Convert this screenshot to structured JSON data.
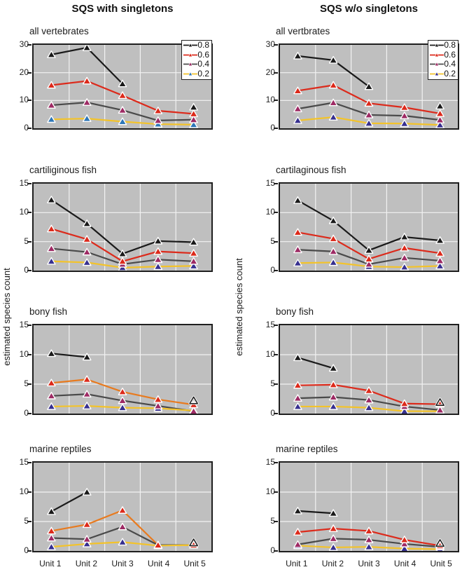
{
  "figure": {
    "column_titles": [
      "SQS with singletons",
      "SQS w/o singletons"
    ],
    "ylabel": "estimated species count",
    "x_categories": [
      "Unit 1",
      "Unit 2",
      "Unit 3",
      "Unit 4",
      "Unit 5"
    ],
    "legend_labels": [
      "0.8",
      "0.6",
      "0.4",
      "0.2"
    ],
    "colors": {
      "plot_bg": "#bfbfbf",
      "grid": "#f2f2f2",
      "axis": "#1f1f1f",
      "black": "#1a1a1a",
      "red": "#dc2a1b",
      "orange": "#e87a1e",
      "dark_gray": "#4a4a4a",
      "yellow": "#f3c32a",
      "magenta_marker": "#9e2a64",
      "indigo_marker": "#37308f",
      "blue_marker": "#2e77b8"
    }
  },
  "chart_data": [
    {
      "type": "line",
      "title": "all vertebrates",
      "group": "SQS with singletons",
      "categories": [
        "Unit 1",
        "Unit 2",
        "Unit 3",
        "Unit 4",
        "Unit 5"
      ],
      "ylim": [
        0,
        30
      ],
      "yticks": [
        0,
        10,
        20,
        30
      ],
      "legend_visible": true,
      "series": [
        {
          "name": "0.8",
          "line_color": "#1a1a1a",
          "marker_color": "#1a1a1a",
          "last_marker_open": false,
          "values": [
            26.5,
            29.0,
            16.0,
            null,
            7.6
          ]
        },
        {
          "name": "0.6",
          "line_color": "#dc2a1b",
          "marker_color": "#dc2a1b",
          "last_marker_open": false,
          "values": [
            15.5,
            17.0,
            11.8,
            6.3,
            5.2
          ]
        },
        {
          "name": "0.4",
          "line_color": "#4a4a4a",
          "marker_color": "#9e2a64",
          "last_marker_open": false,
          "values": [
            8.3,
            9.3,
            6.5,
            2.8,
            3.1
          ]
        },
        {
          "name": "0.2",
          "line_color": "#f3c32a",
          "marker_color": "#2e77b8",
          "last_marker_open": false,
          "values": [
            3.2,
            3.5,
            2.4,
            1.5,
            1.3
          ]
        }
      ]
    },
    {
      "type": "line",
      "title": "all vertbrates",
      "group": "SQS w/o singletons",
      "categories": [
        "Unit 1",
        "Unit 2",
        "Unit 3",
        "Unit 4",
        "Unit 5"
      ],
      "ylim": [
        0,
        30
      ],
      "yticks": [
        0,
        10,
        20,
        30
      ],
      "legend_visible": true,
      "series": [
        {
          "name": "0.8",
          "line_color": "#1a1a1a",
          "marker_color": "#1a1a1a",
          "last_marker_open": false,
          "values": [
            26.0,
            24.5,
            15.0,
            null,
            8.0
          ]
        },
        {
          "name": "0.6",
          "line_color": "#dc2a1b",
          "marker_color": "#dc2a1b",
          "last_marker_open": false,
          "values": [
            13.5,
            15.5,
            9.0,
            7.5,
            5.3
          ]
        },
        {
          "name": "0.4",
          "line_color": "#4a4a4a",
          "marker_color": "#9e2a64",
          "last_marker_open": false,
          "values": [
            7.0,
            9.2,
            4.8,
            4.5,
            3.0
          ]
        },
        {
          "name": "0.2",
          "line_color": "#f3c32a",
          "marker_color": "#37308f",
          "last_marker_open": false,
          "values": [
            2.8,
            4.0,
            1.8,
            1.7,
            1.2
          ]
        }
      ]
    },
    {
      "type": "line",
      "title": "cartiliginous fish",
      "group": "SQS with singletons",
      "categories": [
        "Unit 1",
        "Unit 2",
        "Unit 3",
        "Unit 4",
        "Unit 5"
      ],
      "ylim": [
        0,
        15
      ],
      "yticks": [
        0,
        5,
        10,
        15
      ],
      "legend_visible": false,
      "series": [
        {
          "name": "0.8",
          "line_color": "#1a1a1a",
          "marker_color": "#1a1a1a",
          "last_marker_open": false,
          "values": [
            12.2,
            8.1,
            2.9,
            5.1,
            4.9
          ]
        },
        {
          "name": "0.6",
          "line_color": "#dc2a1b",
          "marker_color": "#dc2a1b",
          "last_marker_open": false,
          "values": [
            7.2,
            5.4,
            1.6,
            3.3,
            3.0
          ]
        },
        {
          "name": "0.4",
          "line_color": "#4a4a4a",
          "marker_color": "#9e2a64",
          "last_marker_open": false,
          "values": [
            3.8,
            3.2,
            1.1,
            1.9,
            1.6
          ]
        },
        {
          "name": "0.2",
          "line_color": "#f3c32a",
          "marker_color": "#37308f",
          "last_marker_open": false,
          "values": [
            1.6,
            1.4,
            0.5,
            0.7,
            0.8
          ]
        }
      ]
    },
    {
      "type": "line",
      "title": "cartilaginous fish",
      "group": "SQS w/o singletons",
      "categories": [
        "Unit 1",
        "Unit 2",
        "Unit 3",
        "Unit 4",
        "Unit 5"
      ],
      "ylim": [
        0,
        15
      ],
      "yticks": [
        0,
        5,
        10,
        15
      ],
      "legend_visible": false,
      "series": [
        {
          "name": "0.8",
          "line_color": "#1a1a1a",
          "marker_color": "#1a1a1a",
          "last_marker_open": false,
          "values": [
            12.1,
            8.6,
            3.5,
            5.8,
            5.2
          ]
        },
        {
          "name": "0.6",
          "line_color": "#dc2a1b",
          "marker_color": "#dc2a1b",
          "last_marker_open": false,
          "values": [
            6.6,
            5.5,
            2.0,
            3.9,
            3.0
          ]
        },
        {
          "name": "0.4",
          "line_color": "#4a4a4a",
          "marker_color": "#9e2a64",
          "last_marker_open": false,
          "values": [
            3.6,
            3.3,
            1.1,
            2.2,
            1.7
          ]
        },
        {
          "name": "0.2",
          "line_color": "#f3c32a",
          "marker_color": "#37308f",
          "last_marker_open": false,
          "values": [
            1.3,
            1.4,
            0.7,
            0.6,
            0.8
          ]
        }
      ]
    },
    {
      "type": "line",
      "title": "bony fish",
      "group": "SQS with singletons",
      "categories": [
        "Unit 1",
        "Unit 2",
        "Unit 3",
        "Unit 4",
        "Unit 5"
      ],
      "ylim": [
        0,
        15
      ],
      "yticks": [
        0,
        5,
        10,
        15
      ],
      "legend_visible": false,
      "series": [
        {
          "name": "0.8",
          "line_color": "#1a1a1a",
          "marker_color": "#1a1a1a",
          "last_marker_open": true,
          "values": [
            10.2,
            9.6,
            null,
            null,
            2.2
          ]
        },
        {
          "name": "0.6",
          "line_color": "#e87a1e",
          "marker_color": "#dc2a1b",
          "last_marker_open": false,
          "values": [
            5.2,
            5.8,
            3.7,
            2.4,
            1.5
          ]
        },
        {
          "name": "0.4",
          "line_color": "#4a4a4a",
          "marker_color": "#9e2a64",
          "last_marker_open": false,
          "values": [
            3.0,
            3.3,
            2.2,
            1.3,
            0.4
          ]
        },
        {
          "name": "0.2",
          "line_color": "#f3c32a",
          "marker_color": "#37308f",
          "last_marker_open": false,
          "values": [
            1.2,
            1.3,
            1.0,
            0.9,
            0.5
          ]
        }
      ]
    },
    {
      "type": "line",
      "title": "bony fish",
      "group": "SQS w/o singletons",
      "categories": [
        "Unit 1",
        "Unit 2",
        "Unit 3",
        "Unit 4",
        "Unit 5"
      ],
      "ylim": [
        0,
        15
      ],
      "yticks": [
        0,
        5,
        10,
        15
      ],
      "legend_visible": false,
      "series": [
        {
          "name": "0.8",
          "line_color": "#1a1a1a",
          "marker_color": "#1a1a1a",
          "last_marker_open": true,
          "values": [
            9.5,
            7.7,
            null,
            null,
            1.9
          ]
        },
        {
          "name": "0.6",
          "line_color": "#dc2a1b",
          "marker_color": "#dc2a1b",
          "last_marker_open": false,
          "values": [
            4.8,
            4.9,
            3.9,
            1.7,
            1.6
          ]
        },
        {
          "name": "0.4",
          "line_color": "#4a4a4a",
          "marker_color": "#9e2a64",
          "last_marker_open": false,
          "values": [
            2.6,
            2.8,
            2.3,
            1.2,
            0.6
          ]
        },
        {
          "name": "0.2",
          "line_color": "#f3c32a",
          "marker_color": "#37308f",
          "last_marker_open": false,
          "values": [
            1.2,
            1.2,
            1.0,
            0.4,
            0.4
          ]
        }
      ]
    },
    {
      "type": "line",
      "title": "marine reptiles",
      "group": "SQS with singletons",
      "categories": [
        "Unit 1",
        "Unit 2",
        "Unit 3",
        "Unit 4",
        "Unit 5"
      ],
      "ylim": [
        0,
        15
      ],
      "yticks": [
        0,
        5,
        10,
        15
      ],
      "legend_visible": false,
      "series": [
        {
          "name": "0.8",
          "line_color": "#1a1a1a",
          "marker_color": "#1a1a1a",
          "last_marker_open": true,
          "values": [
            6.7,
            10.0,
            null,
            null,
            1.4
          ]
        },
        {
          "name": "0.6",
          "line_color": "#e87a1e",
          "marker_color": "#dc2a1b",
          "last_marker_open": false,
          "values": [
            3.4,
            4.5,
            6.9,
            1.0,
            1.0
          ]
        },
        {
          "name": "0.4",
          "line_color": "#4a4a4a",
          "marker_color": "#9e2a64",
          "last_marker_open": false,
          "values": [
            2.2,
            2.0,
            4.1,
            1.0,
            1.0
          ]
        },
        {
          "name": "0.2",
          "line_color": "#f3c32a",
          "marker_color": "#37308f",
          "last_marker_open": false,
          "values": [
            0.7,
            1.2,
            1.5,
            0.9,
            1.0
          ]
        }
      ]
    },
    {
      "type": "line",
      "title": "marine reptiles",
      "group": "SQS w/o singletons",
      "categories": [
        "Unit 1",
        "Unit 2",
        "Unit 3",
        "Unit 4",
        "Unit 5"
      ],
      "ylim": [
        0,
        15
      ],
      "yticks": [
        0,
        5,
        10,
        15
      ],
      "legend_visible": false,
      "series": [
        {
          "name": "0.8",
          "line_color": "#1a1a1a",
          "marker_color": "#1a1a1a",
          "last_marker_open": true,
          "values": [
            6.8,
            6.4,
            null,
            null,
            1.3
          ]
        },
        {
          "name": "0.6",
          "line_color": "#dc2a1b",
          "marker_color": "#dc2a1b",
          "last_marker_open": false,
          "values": [
            3.2,
            3.8,
            3.4,
            1.9,
            0.9
          ]
        },
        {
          "name": "0.4",
          "line_color": "#4a4a4a",
          "marker_color": "#9e2a64",
          "last_marker_open": false,
          "values": [
            1.1,
            2.1,
            1.9,
            1.2,
            0.7
          ]
        },
        {
          "name": "0.2",
          "line_color": "#f3c32a",
          "marker_color": "#37308f",
          "last_marker_open": false,
          "values": [
            0.9,
            0.6,
            0.7,
            0.4,
            0.3
          ]
        }
      ]
    }
  ]
}
